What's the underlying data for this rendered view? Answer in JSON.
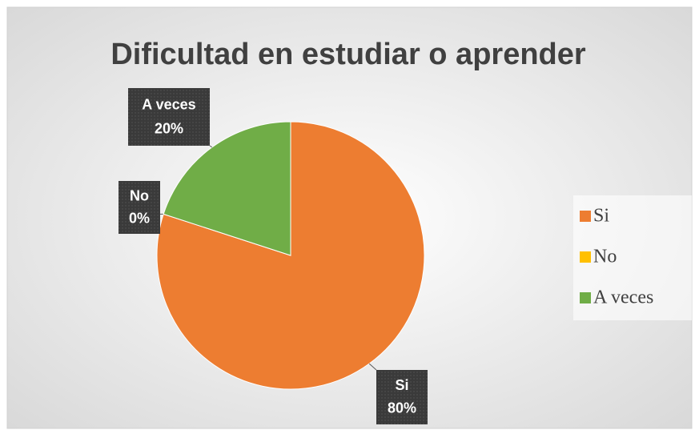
{
  "chart_data": {
    "type": "pie",
    "title": "Dificultad en estudiar o aprender",
    "categories": [
      "Si",
      "No",
      "A veces"
    ],
    "values": [
      80,
      0,
      20
    ],
    "value_labels": [
      "80%",
      "0%",
      "20%"
    ],
    "colors": [
      "#ed7d31",
      "#ffc000",
      "#70ad47"
    ],
    "legend": "right"
  }
}
